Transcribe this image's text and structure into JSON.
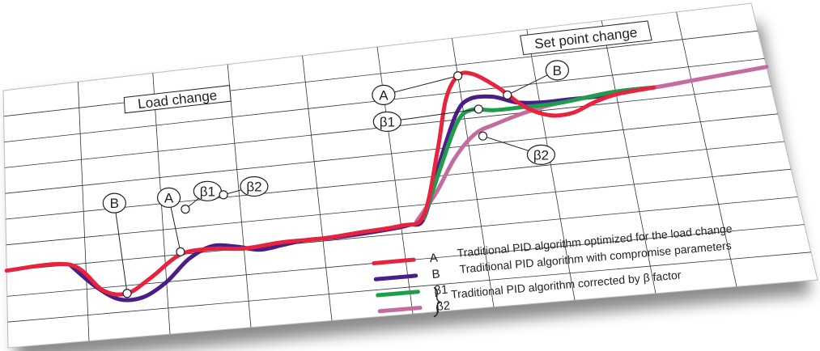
{
  "chart_data": {
    "type": "line",
    "title": "",
    "xlabel": "",
    "ylabel": "",
    "grid": true,
    "x_range": [
      0,
      100
    ],
    "y_range": [
      0,
      100
    ],
    "region_labels": [
      "Load change",
      "Set point change"
    ],
    "series": [
      {
        "key": "A",
        "color": "#e8233e",
        "points": [
          [
            0,
            30
          ],
          [
            8,
            30
          ],
          [
            12,
            19
          ],
          [
            15,
            17
          ],
          [
            18,
            22
          ],
          [
            22,
            30
          ],
          [
            26,
            31
          ],
          [
            30,
            30
          ],
          [
            35,
            31
          ],
          [
            40,
            31
          ],
          [
            45,
            32
          ],
          [
            50,
            33
          ],
          [
            53,
            36
          ],
          [
            56,
            60
          ],
          [
            58,
            78
          ],
          [
            60,
            86
          ],
          [
            62,
            86
          ],
          [
            65,
            80
          ],
          [
            68,
            72
          ],
          [
            71,
            68
          ],
          [
            74,
            68
          ],
          [
            77,
            71
          ],
          [
            80,
            73
          ],
          [
            85,
            74
          ]
        ]
      },
      {
        "key": "B",
        "color": "#4a1e88",
        "points": [
          [
            8,
            30
          ],
          [
            11,
            21
          ],
          [
            14,
            15
          ],
          [
            17,
            15
          ],
          [
            20,
            20
          ],
          [
            23,
            28
          ],
          [
            26,
            32
          ],
          [
            29,
            31
          ],
          [
            32,
            29
          ],
          [
            35,
            30
          ],
          [
            38,
            31
          ],
          [
            42,
            31
          ],
          [
            48,
            32
          ],
          [
            51,
            33
          ],
          [
            53,
            35
          ],
          [
            56,
            55
          ],
          [
            59,
            72
          ],
          [
            61,
            77
          ],
          [
            64,
            77
          ],
          [
            67,
            74
          ],
          [
            70,
            73
          ],
          [
            74,
            73
          ],
          [
            78,
            73
          ],
          [
            81,
            74
          ],
          [
            85,
            74
          ]
        ]
      },
      {
        "key": "β1",
        "color": "#1e9e4a",
        "points": [
          [
            53,
            35
          ],
          [
            56,
            53
          ],
          [
            59,
            69
          ],
          [
            61,
            73
          ],
          [
            64,
            72
          ],
          [
            68,
            72
          ],
          [
            72,
            72
          ],
          [
            76,
            73
          ],
          [
            80,
            74
          ],
          [
            85,
            74
          ]
        ]
      },
      {
        "key": "β2",
        "color": "#c46ca0",
        "points": [
          [
            52,
            34
          ],
          [
            55,
            44
          ],
          [
            58,
            56
          ],
          [
            61,
            64
          ],
          [
            64,
            67
          ],
          [
            68,
            70
          ],
          [
            72,
            72
          ],
          [
            76,
            73
          ],
          [
            80,
            74
          ],
          [
            85,
            74
          ],
          [
            90,
            75
          ],
          [
            95,
            76
          ],
          [
            100,
            77
          ]
        ]
      }
    ],
    "callouts": [
      {
        "text": "B",
        "anchor": [
          15,
          17
        ],
        "label": [
          14,
          52
        ]
      },
      {
        "text": "A",
        "anchor": [
          22,
          31
        ],
        "label": [
          21,
          52
        ]
      },
      {
        "text": "β1",
        "anchor": [
          23,
          47
        ],
        "label": [
          26,
          53
        ]
      },
      {
        "text": "β2",
        "anchor": [
          28,
          51
        ],
        "label": [
          32,
          53
        ]
      },
      {
        "text": "A",
        "anchor": [
          60,
          86
        ],
        "label": [
          50,
          82
        ]
      },
      {
        "text": "B",
        "anchor": [
          66,
          77
        ],
        "label": [
          73,
          84
        ]
      },
      {
        "text": "β1",
        "anchor": [
          62,
          73
        ],
        "label": [
          50,
          72
        ]
      },
      {
        "text": "β2",
        "anchor": [
          62,
          63
        ],
        "label": [
          69,
          54
        ]
      }
    ],
    "legend": {
      "placement": "bottom-right",
      "entries": [
        {
          "key": "A",
          "color": "#e8233e",
          "text": "Traditional PID algorithm optimized for the load change"
        },
        {
          "key": "B",
          "color": "#4a1e88",
          "text": "Traditional PID algorithm with compromise parameters"
        },
        {
          "key": "β1",
          "color": "#1e9e4a",
          "text": ""
        },
        {
          "key": "β2",
          "color": "#c46ca0",
          "text": ""
        }
      ],
      "group_text": "Traditional PID algorithm corrected by β factor"
    }
  }
}
